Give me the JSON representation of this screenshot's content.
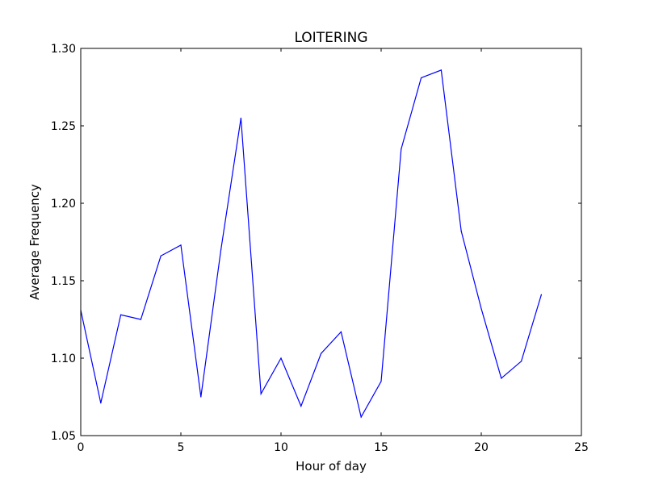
{
  "chart_data": {
    "type": "line",
    "title": "LOITERING",
    "xlabel": "Hour of day",
    "ylabel": "Average Frequency",
    "xlim": [
      0,
      25
    ],
    "ylim": [
      1.05,
      1.3
    ],
    "xticks": [
      0,
      5,
      10,
      15,
      20,
      25
    ],
    "xtick_labels": [
      "0",
      "5",
      "10",
      "15",
      "20",
      "25"
    ],
    "yticks": [
      1.05,
      1.1,
      1.15,
      1.2,
      1.25,
      1.3
    ],
    "ytick_labels": [
      "1.05",
      "1.10",
      "1.15",
      "1.20",
      "1.25",
      "1.30"
    ],
    "grid": false,
    "series": [
      {
        "color": "#0000ff",
        "x": [
          0,
          1,
          2,
          3,
          4,
          5,
          6,
          7,
          8,
          9,
          10,
          11,
          12,
          13,
          14,
          15,
          16,
          17,
          18,
          19,
          20,
          21,
          22,
          23
        ],
        "y": [
          1.131,
          1.071,
          1.128,
          1.125,
          1.166,
          1.173,
          1.075,
          1.17,
          1.255,
          1.077,
          1.1,
          1.069,
          1.103,
          1.117,
          1.062,
          1.085,
          1.235,
          1.281,
          1.286,
          1.182,
          1.132,
          1.087,
          1.098,
          1.141
        ]
      }
    ]
  }
}
